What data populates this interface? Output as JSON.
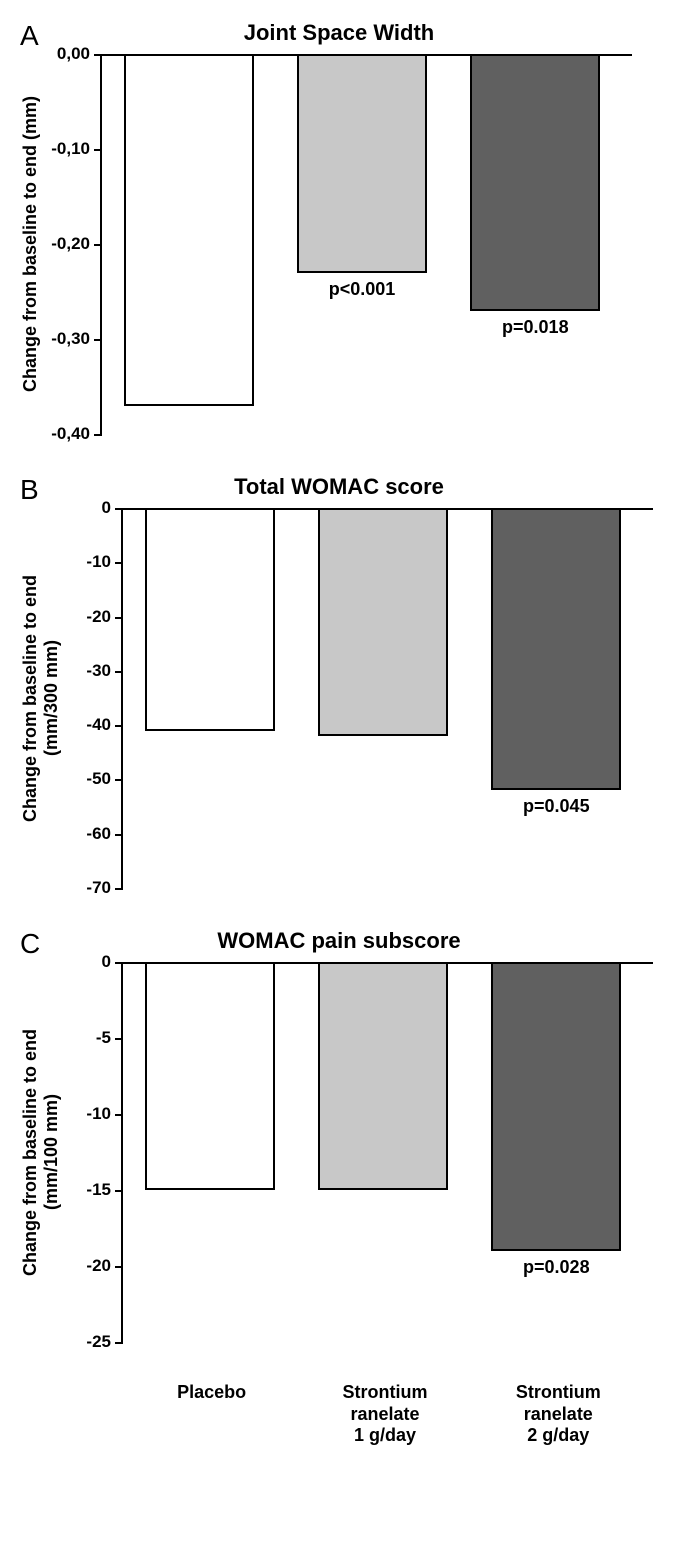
{
  "xCategories": [
    {
      "line1": "Placebo",
      "line2": "",
      "line3": ""
    },
    {
      "line1": "Strontium",
      "line2": "ranelate",
      "line3": "1 g/day"
    },
    {
      "line1": "Strontium",
      "line2": "ranelate",
      "line3": "2 g/day"
    }
  ],
  "barColors": {
    "placebo": "#ffffff",
    "sr1": "#c8c8c8",
    "sr2": "#606060"
  },
  "plotWidthPx": 520,
  "barWidthPx": 130,
  "panels": [
    {
      "letter": "A",
      "title": "Joint Space Width",
      "ylabel": "Change from baseline to end (mm)",
      "ymin": -0.4,
      "ymax": 0.0,
      "heightPx": 380,
      "ticks": [
        {
          "v": 0.0,
          "label": "0,00"
        },
        {
          "v": -0.1,
          "label": "-0,10"
        },
        {
          "v": -0.2,
          "label": "-0,20"
        },
        {
          "v": -0.3,
          "label": "-0,30"
        },
        {
          "v": -0.4,
          "label": "-0,40"
        }
      ],
      "bars": [
        {
          "value": -0.37,
          "colorKey": "placebo",
          "pLabel": ""
        },
        {
          "value": -0.23,
          "colorKey": "sr1",
          "pLabel": "p<0.001"
        },
        {
          "value": -0.27,
          "colorKey": "sr2",
          "pLabel": "p=0.018"
        }
      ]
    },
    {
      "letter": "B",
      "title": "Total WOMAC score",
      "ylabel": "Change from baseline to end\n(mm/300 mm)",
      "ymin": -70,
      "ymax": 0,
      "heightPx": 380,
      "ticks": [
        {
          "v": 0,
          "label": "0"
        },
        {
          "v": -10,
          "label": "-10"
        },
        {
          "v": -20,
          "label": "-20"
        },
        {
          "v": -30,
          "label": "-30"
        },
        {
          "v": -40,
          "label": "-40"
        },
        {
          "v": -50,
          "label": "-50"
        },
        {
          "v": -60,
          "label": "-60"
        },
        {
          "v": -70,
          "label": "-70"
        }
      ],
      "bars": [
        {
          "value": -41,
          "colorKey": "placebo",
          "pLabel": ""
        },
        {
          "value": -42,
          "colorKey": "sr1",
          "pLabel": ""
        },
        {
          "value": -52,
          "colorKey": "sr2",
          "pLabel": "p=0.045"
        }
      ]
    },
    {
      "letter": "C",
      "title": "WOMAC pain subscore",
      "ylabel": "Change from baseline to end\n(mm/100 mm)",
      "ymin": -25,
      "ymax": 0,
      "heightPx": 380,
      "ticks": [
        {
          "v": 0,
          "label": "0"
        },
        {
          "v": -5,
          "label": "-5"
        },
        {
          "v": -10,
          "label": "-10"
        },
        {
          "v": -15,
          "label": "-15"
        },
        {
          "v": -20,
          "label": "-20"
        },
        {
          "v": -25,
          "label": "-25"
        }
      ],
      "bars": [
        {
          "value": -15,
          "colorKey": "placebo",
          "pLabel": ""
        },
        {
          "value": -15,
          "colorKey": "sr1",
          "pLabel": ""
        },
        {
          "value": -19,
          "colorKey": "sr2",
          "pLabel": "p=0.028"
        }
      ]
    }
  ]
}
